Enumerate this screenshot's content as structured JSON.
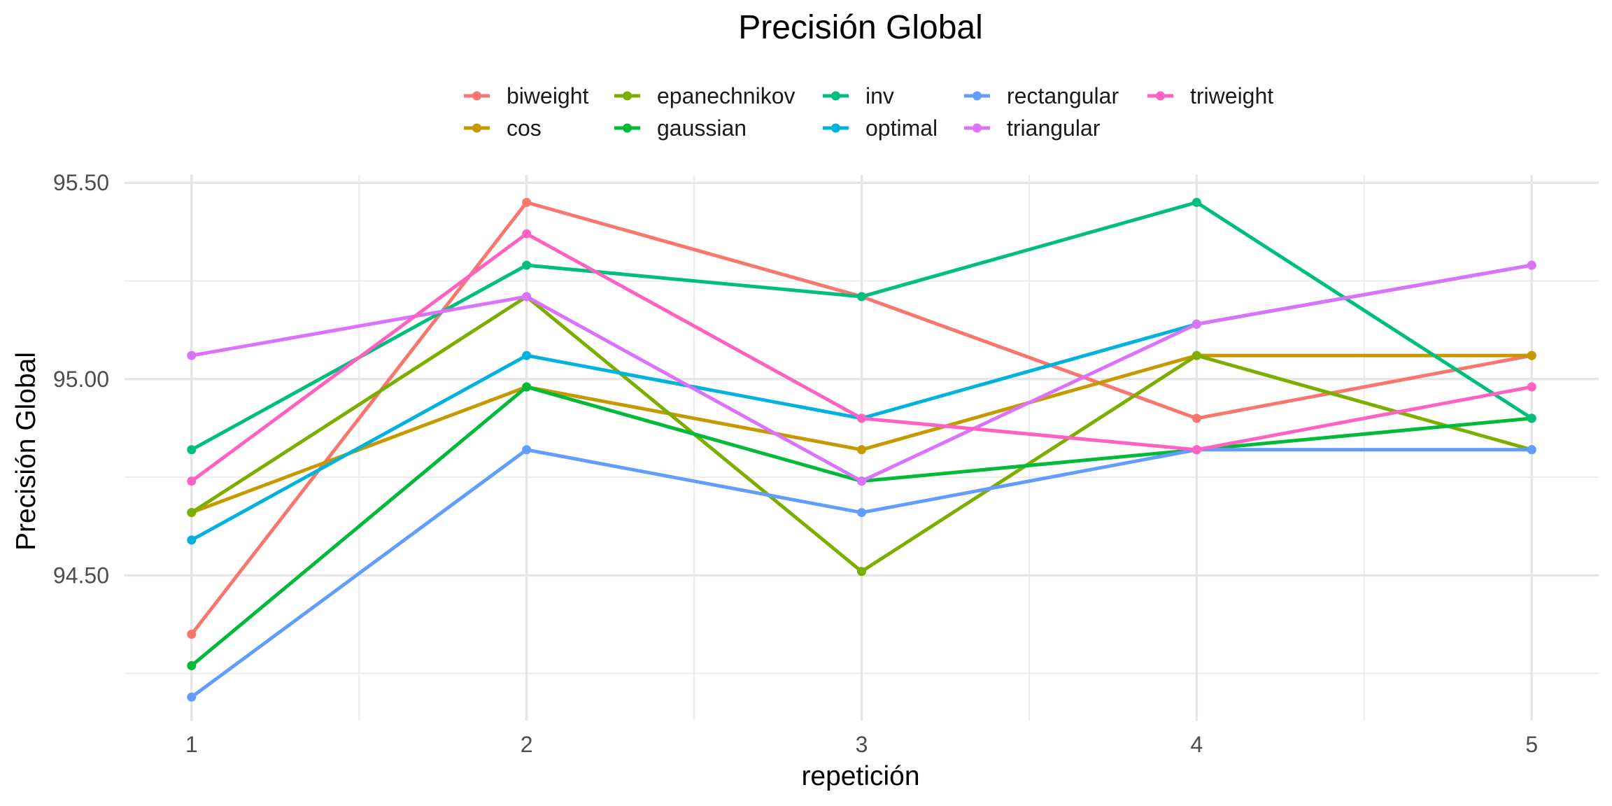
{
  "chart_data": {
    "type": "line",
    "title": "Precisión Global",
    "xlabel": "repetición",
    "ylabel": "Precisión Global",
    "x": [
      1,
      2,
      3,
      4,
      5
    ],
    "x_tick_labels": [
      "1",
      "2",
      "3",
      "4",
      "5"
    ],
    "y_ticks": [
      94.5,
      95.0,
      95.5
    ],
    "y_tick_labels": [
      "94.50",
      "95.00",
      "95.50"
    ],
    "xlim": [
      0.8,
      5.2
    ],
    "ylim": [
      94.13,
      95.52
    ],
    "grid": true,
    "legend_position": "top",
    "series": [
      {
        "name": "biweight",
        "color": "#F8766D",
        "values": [
          94.35,
          95.45,
          95.21,
          94.9,
          95.06
        ]
      },
      {
        "name": "cos",
        "color": "#C49A00",
        "values": [
          94.66,
          94.98,
          94.82,
          95.06,
          95.06
        ]
      },
      {
        "name": "epanechnikov",
        "color": "#7CAE00",
        "values": [
          94.66,
          95.21,
          94.51,
          95.06,
          94.82
        ]
      },
      {
        "name": "gaussian",
        "color": "#00BA38",
        "values": [
          94.27,
          94.98,
          94.74,
          94.82,
          94.9
        ]
      },
      {
        "name": "inv",
        "color": "#00BF7D",
        "values": [
          94.82,
          95.29,
          95.21,
          95.45,
          94.9
        ]
      },
      {
        "name": "optimal",
        "color": "#00B2DD",
        "values": [
          94.59,
          95.06,
          94.9,
          95.14,
          95.29
        ]
      },
      {
        "name": "rectangular",
        "color": "#619CFF",
        "values": [
          94.19,
          94.82,
          94.66,
          94.82,
          94.82
        ]
      },
      {
        "name": "triangular",
        "color": "#DB72FB",
        "values": [
          95.06,
          95.21,
          94.74,
          95.14,
          95.29
        ]
      },
      {
        "name": "triweight",
        "color": "#FF61C3",
        "values": [
          94.74,
          95.37,
          94.9,
          94.82,
          94.98
        ]
      }
    ]
  }
}
